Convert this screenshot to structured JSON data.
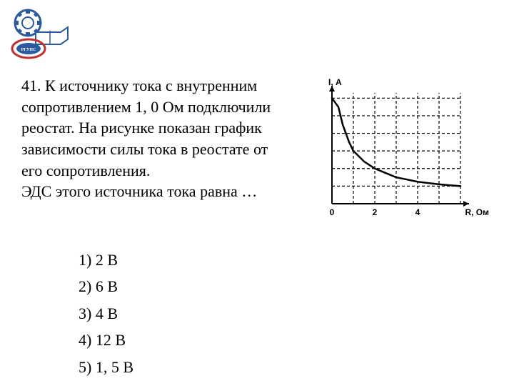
{
  "logo": {
    "text": "РГУПС",
    "gear_color": "#2a5b9e",
    "book_color": "#ffffff",
    "circle_border": "#c03030",
    "inner_text": "РГУПС"
  },
  "problem": {
    "number": "41.",
    "text_line1": "К источнику тока с внутренним",
    "text_line2": "сопротивлением 1, 0 Ом подключили",
    "text_line3": "реостат. На рисунке показан график",
    "text_line4": "зависимости силы тока в реостате от",
    "text_line5": "его сопротивления.",
    "text_line6": "ЭДС этого источника тока равна …"
  },
  "answers": {
    "option1": "1) 2 В",
    "option2": "2) 6 В",
    "option3": "3) 4 В",
    "option4": "4) 12 В",
    "option5": "5) 1, 5 В"
  },
  "chart": {
    "type": "line",
    "y_label": "I, А",
    "x_label": "R, Ом",
    "y_ticks": [
      0,
      1,
      2,
      3,
      4,
      5,
      6
    ],
    "x_ticks": [
      0,
      1,
      2,
      3,
      4,
      5,
      6
    ],
    "x_tick_labels": [
      "0",
      "",
      "2",
      "",
      "4",
      "",
      ""
    ],
    "xlim": [
      0,
      6
    ],
    "ylim": [
      0,
      6.5
    ],
    "curve_points": [
      {
        "x": 0,
        "y": 6
      },
      {
        "x": 0.3,
        "y": 5.5
      },
      {
        "x": 0.5,
        "y": 4.5
      },
      {
        "x": 0.8,
        "y": 3.5
      },
      {
        "x": 1,
        "y": 3
      },
      {
        "x": 1.5,
        "y": 2.4
      },
      {
        "x": 2,
        "y": 2
      },
      {
        "x": 2.5,
        "y": 1.75
      },
      {
        "x": 3,
        "y": 1.5
      },
      {
        "x": 4,
        "y": 1.25
      },
      {
        "x": 5,
        "y": 1.1
      },
      {
        "x": 6,
        "y": 1
      }
    ],
    "line_color": "#000000",
    "line_width": 2.5,
    "grid_color": "#000000",
    "grid_dash": "4,3",
    "axis_color": "#000000",
    "axis_width": 2,
    "background_color": "#ffffff",
    "label_fontsize": 12,
    "label_fontweight": "bold"
  }
}
